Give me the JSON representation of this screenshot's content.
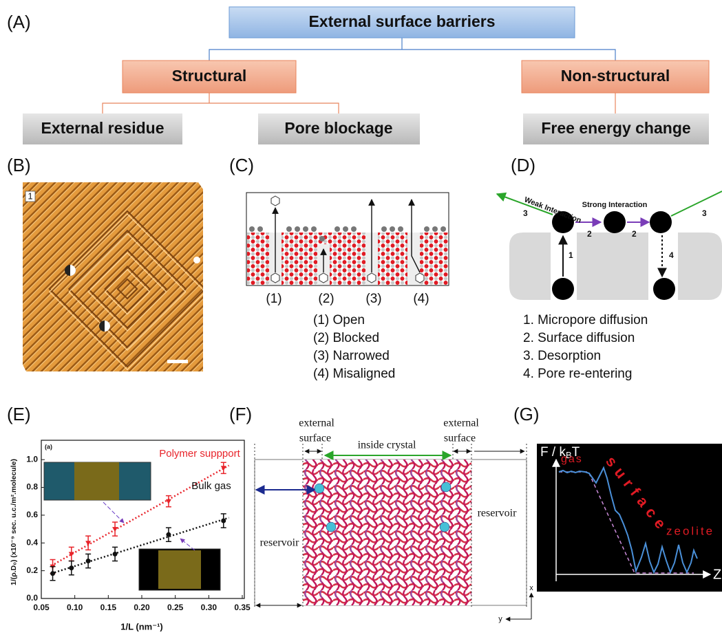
{
  "panel_labels": [
    "(A)",
    "(B)",
    "(C)",
    "(D)",
    "(E)",
    "(F)",
    "(G)"
  ],
  "tree": {
    "root": "External surface barriers",
    "children": [
      {
        "label": "Structural",
        "children": [
          "External residue",
          "Pore blockage"
        ]
      },
      {
        "label": "Non-structural",
        "children": [
          "Free energy change"
        ]
      }
    ]
  },
  "panel_b": {
    "image_label": "1"
  },
  "panel_c": {
    "pore_labels": [
      "(1)",
      "(2)",
      "(3)",
      "(4)"
    ],
    "legend": [
      "(1) Open",
      "(2) Blocked",
      "(3) Narrowed",
      "(4) Misaligned"
    ]
  },
  "panel_d": {
    "weak": "Weak Interaction",
    "strong": "Strong Interaction",
    "steps": [
      "3",
      "2",
      "2",
      "1",
      "4",
      "3"
    ],
    "legend": [
      "1. Micropore diffusion",
      "2. Surface diffusion",
      "3. Desorption",
      "4. Pore re-entering"
    ]
  },
  "chart_data": {
    "type": "scatter",
    "panel_tag": "(a)",
    "xlabel": "1/L (nm⁻¹)",
    "ylabel": "1/(ρ.D₀) (x10⁻⁹ sec. u.c./m².molecule)",
    "x": [
      0.067,
      0.095,
      0.12,
      0.16,
      0.24,
      0.322
    ],
    "series": [
      {
        "name": "Polymer suppport",
        "color": "#e8232a",
        "values": [
          0.23,
          0.32,
          0.4,
          0.5,
          0.7,
          0.94
        ],
        "errors": [
          0.05,
          0.05,
          0.05,
          0.05,
          0.04,
          0.04
        ]
      },
      {
        "name": "Bulk gas",
        "color": "#111111",
        "values": [
          0.18,
          0.22,
          0.27,
          0.32,
          0.46,
          0.56
        ],
        "errors": [
          0.05,
          0.05,
          0.05,
          0.05,
          0.05,
          0.05
        ]
      }
    ],
    "xlim": [
      0.05,
      0.35
    ],
    "xticks": [
      0.05,
      {
        "value": 0.1,
        "label": "0.10"
      },
      0.15,
      {
        "value": 0.2,
        "label": "0.20"
      },
      0.25,
      {
        "value": 0.3,
        "label": "0.30"
      },
      0.35
    ],
    "ylim": [
      0,
      1.1
    ],
    "yticks": [
      {
        "value": 0,
        "label": "0.0"
      },
      0.2,
      0.4,
      0.6,
      0.8,
      {
        "value": 1,
        "label": "1.0"
      }
    ]
  },
  "panel_f": {
    "left_surface": [
      "external",
      "surface"
    ],
    "inside": "inside crystal",
    "right_surface": [
      "external",
      "surface"
    ],
    "reservoir_right": "reservoir",
    "reservoir_left": "reservoir",
    "axis_x": "x",
    "axis_y": "y"
  },
  "panel_g": {
    "y_axis": {
      "prefix": "F / k",
      "sub": "B",
      "suffix": "T"
    },
    "gas": "gas",
    "surface": "surface",
    "zeolite": "zeolite",
    "x_axis": "Z"
  }
}
